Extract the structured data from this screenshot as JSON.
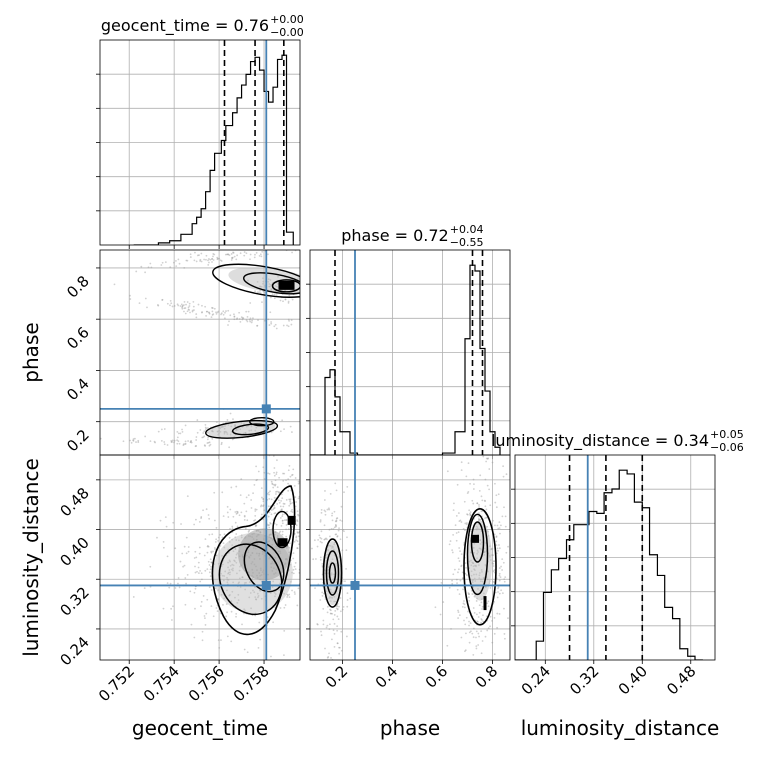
{
  "chart_data": {
    "type": "corner",
    "parameters": [
      "geocent_time",
      "phase",
      "luminosity_distance"
    ],
    "axis_labels": [
      "geocent_time",
      "phase",
      "luminosity_distance"
    ],
    "ranges": {
      "geocent_time": [
        0.7507,
        0.7596
      ],
      "phase": [
        0.07,
        0.87
      ],
      "luminosity_distance": [
        0.19,
        0.52
      ]
    },
    "ticks": {
      "geocent_time": {
        "values": [
          0.752,
          0.754,
          0.756,
          0.758
        ],
        "labels": [
          "0.752",
          "0.754",
          "0.756",
          "0.758"
        ]
      },
      "phase": {
        "values": [
          0.2,
          0.4,
          0.6,
          0.8
        ],
        "labels": [
          "0.2",
          "0.4",
          "0.6",
          "0.8"
        ]
      },
      "luminosity_distance": {
        "values": [
          0.24,
          0.32,
          0.4,
          0.48
        ],
        "labels": [
          "0.24",
          "0.32",
          "0.40",
          "0.48"
        ]
      }
    },
    "truths": {
      "geocent_time": 0.7581,
      "phase": 0.25,
      "luminosity_distance": 0.31
    },
    "titles": [
      {
        "param": "geocent_time",
        "prefix": "geocent_time = ",
        "median": "0.76",
        "plus": "+0.00",
        "minus": "−0.00"
      },
      {
        "param": "phase",
        "prefix": "phase = ",
        "median": "0.72",
        "plus": "+0.04",
        "minus": "−0.55"
      },
      {
        "param": "luminosity_distance",
        "prefix": "luminosity_distance = ",
        "median": "0.34",
        "plus": "+0.05",
        "minus": "−0.06"
      }
    ],
    "quantiles": {
      "geocent_time": [
        0.75624,
        0.7576,
        0.75888
      ],
      "phase": [
        0.17,
        0.72,
        0.76
      ],
      "luminosity_distance": [
        0.28,
        0.34,
        0.4
      ]
    },
    "histograms": {
      "geocent_time": {
        "edges": [
          0.7522,
          0.7533,
          0.7538,
          0.7543,
          0.7548,
          0.755,
          0.7552,
          0.7554,
          0.7556,
          0.7558,
          0.7561,
          0.7563,
          0.7566,
          0.7568,
          0.757,
          0.7572,
          0.7574,
          0.7576,
          0.7578,
          0.758,
          0.7582,
          0.7584,
          0.7586,
          0.7588,
          0.759,
          0.7593
        ],
        "counts": [
          0,
          1,
          2,
          5,
          10,
          13,
          17,
          25,
          35,
          43,
          49,
          56,
          62,
          69,
          75,
          80,
          86,
          88,
          82,
          72,
          67,
          74,
          87,
          89,
          6
        ]
      },
      "phase": {
        "edges": [
          0.07,
          0.13,
          0.15,
          0.17,
          0.19,
          0.21,
          0.23,
          0.26,
          0.6,
          0.65,
          0.67,
          0.69,
          0.71,
          0.73,
          0.75,
          0.77,
          0.79,
          0.81,
          0.83
        ],
        "counts": [
          0,
          40,
          44,
          30,
          12,
          12,
          1,
          0,
          1,
          12,
          12,
          60,
          98,
          95,
          55,
          33,
          12,
          4
        ]
      },
      "luminosity_distance": {
        "edges": [
          0.19,
          0.225,
          0.237,
          0.25,
          0.262,
          0.275,
          0.287,
          0.3,
          0.312,
          0.325,
          0.337,
          0.35,
          0.362,
          0.375,
          0.387,
          0.4,
          0.412,
          0.425,
          0.437,
          0.45,
          0.462,
          0.475,
          0.487,
          0.5
        ],
        "counts": [
          0,
          10,
          36,
          48,
          54,
          64,
          72,
          72,
          79,
          78,
          89,
          91,
          101,
          99,
          84,
          81,
          56,
          45,
          28,
          22,
          6,
          2,
          0
        ]
      }
    },
    "contour_pairs": [
      {
        "x": "geocent_time",
        "y": "phase"
      },
      {
        "x": "geocent_time",
        "y": "luminosity_distance"
      },
      {
        "x": "phase",
        "y": "luminosity_distance"
      }
    ],
    "colors": {
      "truth": "#4682b4",
      "line": "#000000",
      "grid": "#b0b0b0",
      "scatter": "#999999"
    },
    "grid": true
  }
}
